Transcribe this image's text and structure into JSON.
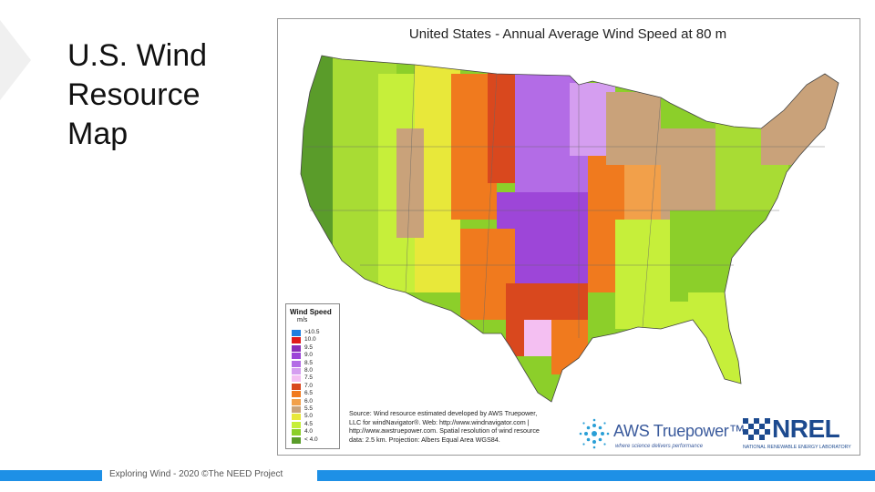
{
  "slide": {
    "title": "U.S. Wind Resource Map",
    "footer": "Exploring Wind - 2020  ©The NEED Project"
  },
  "map": {
    "title": "United States - Annual Average Wind Speed at 80 m",
    "legend": {
      "title": "Wind Speed",
      "unit": "m/s",
      "items": [
        {
          "label": ">10.5",
          "color": "#1f7fe0"
        },
        {
          "label": "10.0",
          "color": "#e01b1b"
        },
        {
          "label": "9.5",
          "color": "#8a2fb8"
        },
        {
          "label": "9.0",
          "color": "#9d46d8"
        },
        {
          "label": "8.5",
          "color": "#b36ce6"
        },
        {
          "label": "8.0",
          "color": "#d59ef0"
        },
        {
          "label": "7.5",
          "color": "#f4bff2"
        },
        {
          "label": "7.0",
          "color": "#d9481e"
        },
        {
          "label": "6.5",
          "color": "#f07a1e"
        },
        {
          "label": "6.0",
          "color": "#f2a04a"
        },
        {
          "label": "5.5",
          "color": "#c9a27a"
        },
        {
          "label": "5.0",
          "color": "#e8e83a"
        },
        {
          "label": "4.5",
          "color": "#c6ef3a"
        },
        {
          "label": "4.0",
          "color": "#8ccf2a"
        },
        {
          "label": "< 4.0",
          "color": "#5a9c2a"
        }
      ]
    },
    "source_lines": [
      "Source: Wind resource estimated developed by AWS Truepower,",
      "LLC for windNavigator®. Web: http://www.windnavigator.com |",
      "http://www.awstruepower.com. Spatial resolution of wind resource",
      "data: 2.5 km. Projection: Albers Equal Area WGS84."
    ],
    "aws_logo": {
      "name": "AWS Truepower™",
      "tagline": "where science delivers performance"
    },
    "nrel_logo": {
      "name": "NREL",
      "subtitle": "NATIONAL RENEWABLE ENERGY LABORATORY"
    }
  }
}
